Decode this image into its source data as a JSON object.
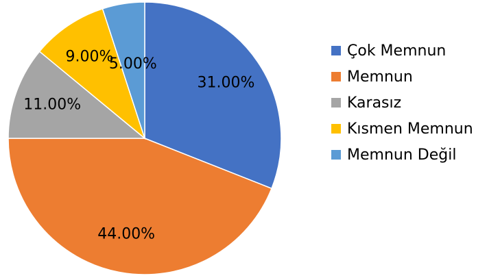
{
  "chart_data": {
    "type": "pie",
    "categories": [
      "Çok Memnun",
      "Memnun",
      "Karasız",
      "Kısmen Memnun",
      "Memnun Değil"
    ],
    "values": [
      31,
      44,
      11,
      9,
      5
    ],
    "value_labels": [
      "31.00%",
      "44.00%",
      "11.00%",
      "9.00%",
      "5.00%"
    ],
    "colors": [
      "#4472c4",
      "#ed7d31",
      "#a5a5a5",
      "#ffc000",
      "#5b9bd5"
    ],
    "legend": "right"
  }
}
